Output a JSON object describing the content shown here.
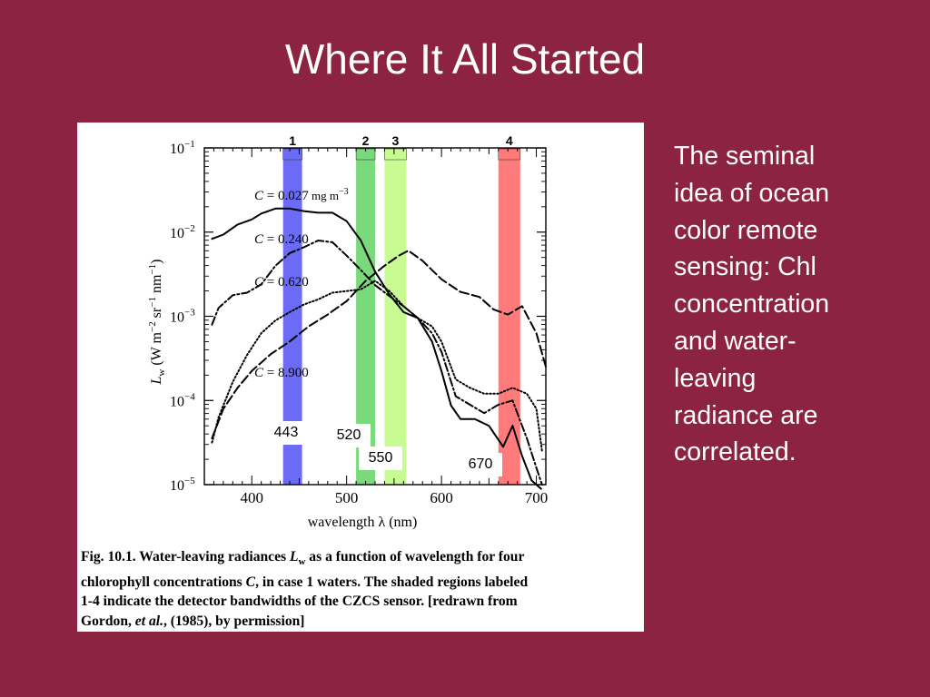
{
  "slide": {
    "title": "Where It All Started",
    "side_text_lines": [
      "The seminal",
      "idea of ocean",
      "color remote",
      "sensing:  Chl",
      "concentration",
      "and water-",
      "leaving",
      "radiance are",
      "correlated."
    ]
  },
  "caption": {
    "lines": [
      "Fig. 10.1.  Water-leaving radiances L_w as a function of wavelength for four",
      "chlorophyll concentrations C, in case 1 waters.  The shaded regions labeled",
      "1-4 indicate the detector bandwidths of the CZCS sensor.  [redrawn from",
      "Gordon, et al., (1985), by permission]"
    ]
  },
  "colors": {
    "background": "#8c2342",
    "band1": "#6b6bf5",
    "band2": "#7ad97a",
    "band3": "#c9fb93",
    "band4": "#ff7a7a"
  },
  "chart_data": {
    "type": "line",
    "xlabel": "wavelength λ  (nm)",
    "ylabel": "L_w  (W m^-2 sr^-1 nm^-1)",
    "xlim": [
      350,
      710
    ],
    "ylim_log10": [
      -5,
      -1
    ],
    "y_scale": "log",
    "xticks": [
      400,
      500,
      600,
      700
    ],
    "yticks": [
      {
        "exp": -1,
        "label": "10",
        "sup": "−1"
      },
      {
        "exp": -2,
        "label": "10",
        "sup": "−2"
      },
      {
        "exp": -3,
        "label": "10",
        "sup": "−3"
      },
      {
        "exp": -4,
        "label": "10",
        "sup": "−4"
      },
      {
        "exp": -5,
        "label": "10",
        "sup": "−5"
      }
    ],
    "bands": [
      {
        "number": "1",
        "wavelength_label": "443",
        "x_range": [
          433,
          453
        ],
        "color": "#6b6bf5"
      },
      {
        "number": "2",
        "wavelength_label": "520",
        "x_range": [
          510,
          530
        ],
        "color": "#7ad97a"
      },
      {
        "number": "3",
        "wavelength_label": "550",
        "x_range": [
          540,
          563
        ],
        "color": "#c9fb93"
      },
      {
        "number": "4",
        "wavelength_label": "670",
        "x_range": [
          660,
          683
        ],
        "color": "#ff7a7a"
      }
    ],
    "series": [
      {
        "label": "C = 0.027 mg m^-3",
        "style": "solid",
        "x": [
          358,
          370,
          385,
          400,
          410,
          425,
          440,
          455,
          470,
          485,
          500,
          515,
          530,
          545,
          560,
          575,
          590,
          600,
          610,
          620,
          635,
          650,
          665,
          675,
          685,
          695,
          705
        ],
        "log10_y": [
          -2.08,
          -2.03,
          -1.91,
          -1.85,
          -1.78,
          -1.72,
          -1.72,
          -1.75,
          -1.77,
          -1.77,
          -1.87,
          -2.1,
          -2.47,
          -2.74,
          -2.95,
          -3.02,
          -3.3,
          -3.65,
          -4.06,
          -4.22,
          -4.22,
          -4.3,
          -4.55,
          -4.3,
          -4.66,
          -4.95,
          -5.05
        ]
      },
      {
        "label": "C = 0.240",
        "style": "dashdot",
        "x": [
          358,
          365,
          380,
          395,
          410,
          425,
          440,
          455,
          470,
          485,
          500,
          515,
          530,
          545,
          560,
          575,
          590,
          600,
          615,
          630,
          645,
          660,
          675,
          690,
          700,
          706
        ],
        "log10_y": [
          -3.1,
          -2.9,
          -2.75,
          -2.72,
          -2.62,
          -2.4,
          -2.25,
          -2.18,
          -2.1,
          -2.12,
          -2.28,
          -2.45,
          -2.63,
          -2.76,
          -2.88,
          -3.02,
          -3.2,
          -3.42,
          -3.95,
          -4.05,
          -4.15,
          -4.05,
          -4.0,
          -4.45,
          -4.8,
          -5.0
        ]
      },
      {
        "label": "C = 0.620",
        "style": "dotted",
        "x": [
          358,
          365,
          380,
          395,
          410,
          425,
          440,
          455,
          470,
          485,
          500,
          515,
          530,
          545,
          560,
          575,
          590,
          600,
          615,
          630,
          645,
          660,
          675,
          690,
          700,
          706
        ],
        "log10_y": [
          -4.5,
          -4.2,
          -3.78,
          -3.46,
          -3.2,
          -3.05,
          -2.95,
          -2.86,
          -2.8,
          -2.72,
          -2.7,
          -2.68,
          -2.58,
          -2.7,
          -2.88,
          -3.02,
          -3.12,
          -3.3,
          -3.75,
          -3.85,
          -3.92,
          -3.92,
          -3.85,
          -3.92,
          -4.1,
          -4.6
        ]
      },
      {
        "label": "C = 8.900",
        "style": "dashed",
        "x": [
          358,
          370,
          385,
          400,
          420,
          440,
          460,
          480,
          500,
          520,
          540,
          555,
          565,
          580,
          600,
          620,
          640,
          655,
          670,
          685,
          700,
          710
        ],
        "log10_y": [
          -4.45,
          -4.1,
          -3.85,
          -3.65,
          -3.45,
          -3.3,
          -3.12,
          -2.98,
          -2.82,
          -2.58,
          -2.4,
          -2.28,
          -2.22,
          -2.34,
          -2.56,
          -2.71,
          -2.77,
          -2.92,
          -2.98,
          -2.88,
          -3.2,
          -3.6
        ]
      }
    ]
  }
}
